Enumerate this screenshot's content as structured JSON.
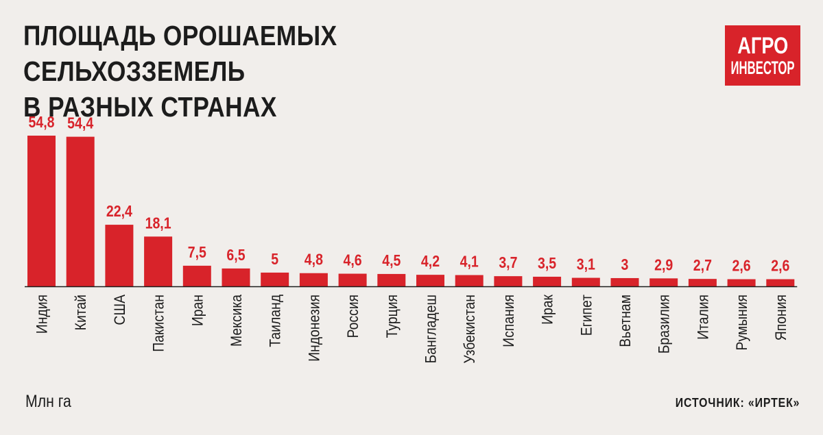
{
  "header": {
    "title": "ПЛОЩАДЬ ОРОШАЕМЫХ СЕЛЬХОЗЗЕМЕЛЬ\nВ РАЗНЫХ СТРАНАХ",
    "logo_line1": "АГРО",
    "logo_line2": "ИНВЕСТОР"
  },
  "footer": {
    "unit": "Млн га",
    "source": "ИСТОЧНИК: «ИРТЕК»"
  },
  "colors": {
    "bar": "#d8232a",
    "label": "#d8232a",
    "text": "#1c1c1c",
    "background": "#f1eeeb"
  },
  "chart_data": {
    "type": "bar",
    "title": "ПЛОЩАДЬ ОРОШАЕМЫХ СЕЛЬХОЗЗЕМЕЛЬ В РАЗНЫХ СТРАНАХ",
    "ylabel": "Млн га",
    "categories": [
      "Индия",
      "Китай",
      "США",
      "Пакистан",
      "Иран",
      "Мексика",
      "Таиланд",
      "Индонезия",
      "Россия",
      "Турция",
      "Бангладеш",
      "Узбекистан",
      "Испания",
      "Ирак",
      "Египет",
      "Вьетнам",
      "Бразилия",
      "Италия",
      "Румыния",
      "Япония"
    ],
    "values": [
      54.8,
      54.4,
      22.4,
      18.1,
      7.5,
      6.5,
      5,
      4.8,
      4.6,
      4.5,
      4.2,
      4.1,
      3.7,
      3.5,
      3.1,
      3,
      2.9,
      2.7,
      2.6,
      2.6
    ],
    "value_labels": [
      "54,8",
      "54,4",
      "22,4",
      "18,1",
      "7,5",
      "6,5",
      "5",
      "4,8",
      "4,6",
      "4,5",
      "4,2",
      "4,1",
      "3,7",
      "3,5",
      "3,1",
      "3",
      "2,9",
      "2,7",
      "2,6",
      "2,6"
    ],
    "ylim": [
      0,
      54.8
    ],
    "grid": false,
    "legend": "none"
  }
}
